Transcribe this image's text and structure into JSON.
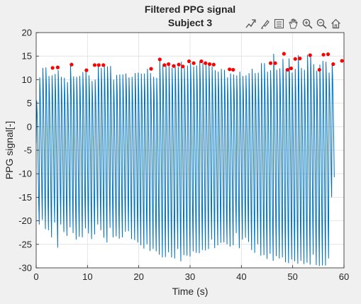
{
  "toolbar": {
    "icons": [
      "data-tips-icon",
      "brush-icon",
      "legend-icon",
      "pan-icon",
      "zoom-in-icon",
      "zoom-out-icon",
      "home-icon"
    ]
  },
  "colors": {
    "line": "#0072bd",
    "peaks": "#ff0000",
    "axes_bg": "#ffffff",
    "figure_bg": "#f0f0f0",
    "grid": "#dfdfdf",
    "text": "#262626"
  },
  "chart_data": {
    "type": "line",
    "title": "Filtered PPG signal",
    "subtitle": "Subject 3",
    "xlabel": "Time (s)",
    "ylabel": "PPG signal[-]",
    "xlim": [
      0,
      60
    ],
    "ylim": [
      -30,
      20
    ],
    "xticks": [
      0,
      10,
      20,
      30,
      40,
      50,
      60
    ],
    "yticks": [
      20,
      15,
      10,
      5,
      0,
      -5,
      -10,
      -15,
      -20,
      -25,
      -30
    ],
    "grid": true,
    "series": [
      {
        "type": "line",
        "cycle_period_s": 0.6,
        "peaks": [
          5.6,
          10.5,
          12.5,
          12.6,
          10.8,
          10.9,
          11.2,
          12.0,
          10.6,
          10.4,
          9.5,
          13.2,
          10.7,
          10.6,
          10.8,
          11.6,
          12.2,
          10.9,
          9.7,
          10.0,
          13.0,
          12.5,
          13.0,
          12.8,
          12.9,
          10.0,
          11.0,
          11.1,
          11.1,
          11.3,
          10.5,
          10.6,
          11.4,
          11.5,
          11.3,
          11.3,
          12.3,
          11.4,
          10.6,
          10.4,
          14.3,
          13.1,
          13.3,
          12.9,
          12.5,
          13.2,
          12.7,
          13.8,
          12.5,
          13.0,
          13.5,
          12.8,
          13.0,
          13.9,
          13.5,
          13.3,
          13.2,
          12.8,
          12.0,
          11.7,
          12.3,
          12.1,
          10.5,
          11.3,
          11.1,
          10.9,
          11.7,
          10.8,
          10.9,
          11.4,
          12.3,
          11.4,
          11.5,
          13.5,
          13.5,
          11.7,
          12.0,
          15.5,
          12.1,
          12.4,
          14.4,
          12.3,
          14.5,
          11.5,
          12.3,
          15.2,
          12.5,
          12.1,
          15.3,
          15.4,
          13.3,
          11.9,
          13.2,
          14.0,
          13.8,
          11.5,
          13.4
        ],
        "troughs": [
          -3.5,
          -20.8,
          -19.8,
          -21.8,
          -22.0,
          -23.5,
          -20.4,
          -25.7,
          -20.8,
          -22.4,
          -23.2,
          -21.4,
          -22.6,
          -24.0,
          -23.4,
          -23.5,
          -21.6,
          -22.7,
          -23.9,
          -22.9,
          -20.8,
          -22.0,
          -23.6,
          -24.6,
          -21.5,
          -23.5,
          -23.3,
          -23.8,
          -23.5,
          -22.3,
          -22.2,
          -23.9,
          -24.1,
          -24.6,
          -25.2,
          -25.9,
          -25.0,
          -26.4,
          -26.0,
          -26.5,
          -27.2,
          -27.8,
          -27.7,
          -26.7,
          -27.8,
          -28.0,
          -26.0,
          -28.6,
          -27.3,
          -27.4,
          -27.6,
          -26.5,
          -26.8,
          -26.9,
          -26.2,
          -26.3,
          -26.0,
          -24.0,
          -25.8,
          -25.2,
          -24.7,
          -24.6,
          -25.0,
          -25.5,
          -25.2,
          -22.6,
          -25.8,
          -24.0,
          -23.6,
          -24.5,
          -26.2,
          -26.8,
          -25.0,
          -27.4,
          -27.3,
          -28.1,
          -27.0,
          -28.5,
          -27.5,
          -28.0,
          -27.8,
          -28.8,
          -29.0,
          -28.2,
          -28.6,
          -29.1,
          -28.5,
          -29.2,
          -28.9,
          -29.3,
          -27.2,
          -29.4,
          -29.6,
          -29.5,
          -29.5,
          -28.0,
          -15.0
        ]
      },
      {
        "type": "scatter",
        "marker": "red-dot",
        "x": [
          3.2,
          4.2,
          6.9,
          9.8,
          11.4,
          12.2,
          13.1,
          22.4,
          24.1,
          25.0,
          25.8,
          26.8,
          27.8,
          28.6,
          29.8,
          30.7,
          32.2,
          33.0,
          33.8,
          34.6,
          37.7,
          38.4,
          45.7,
          46.6,
          48.3,
          49.0,
          49.7,
          50.5,
          51.4,
          53.4,
          55.2,
          56.0,
          56.9,
          57.9,
          59.6
        ],
        "y": [
          12.5,
          12.6,
          13.2,
          12.0,
          13.1,
          13.1,
          13.1,
          12.3,
          14.3,
          13.1,
          13.3,
          12.9,
          13.2,
          12.8,
          13.9,
          13.5,
          13.9,
          13.5,
          13.3,
          13.2,
          12.2,
          12.1,
          13.5,
          13.5,
          15.5,
          12.1,
          12.4,
          14.4,
          14.5,
          15.2,
          12.1,
          15.3,
          15.4,
          13.3,
          14.0
        ]
      }
    ]
  }
}
